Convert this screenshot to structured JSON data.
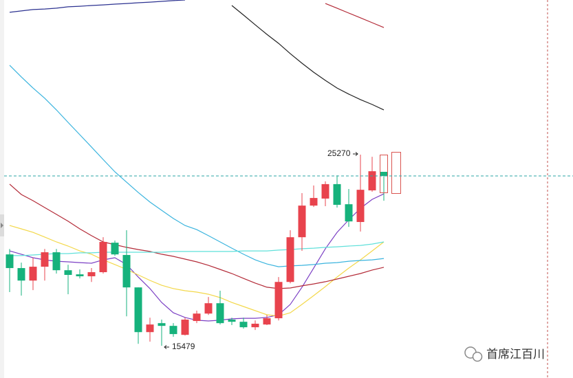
{
  "chart_data": {
    "type": "candlestick",
    "ylim": [
      13830,
      33190
    ],
    "up_color": "#e8434d",
    "down_color": "#16b27c",
    "open": [
      20160,
      19460,
      18820,
      19530,
      20270,
      19350,
      19140,
      19040,
      19250,
      20760,
      20130,
      18470,
      16180,
      16640,
      16500,
      16040,
      16750,
      17130,
      17660,
      16820,
      16710,
      16430,
      16570,
      16890,
      18750,
      21040,
      22660,
      23020,
      23760,
      22730,
      21820,
      23440,
      24390
    ],
    "high": [
      20440,
      19740,
      19990,
      20440,
      20440,
      19630,
      19390,
      19460,
      21040,
      20870,
      21400,
      18470,
      16920,
      16820,
      16640,
      16920,
      17280,
      17980,
      18300,
      16920,
      16920,
      16780,
      17060,
      19000,
      21400,
      23300,
      23690,
      23900,
      24210,
      23510,
      25270,
      25160,
      24390
    ],
    "low": [
      18230,
      18050,
      18330,
      18820,
      19180,
      18120,
      18930,
      18750,
      19180,
      20090,
      16990,
      15580,
      15690,
      15479,
      15940,
      16010,
      16640,
      17060,
      16570,
      16540,
      16360,
      16290,
      16540,
      16780,
      18680,
      20340,
      22590,
      22630,
      22560,
      21570,
      21330,
      23370,
      22910
    ],
    "close": [
      19460,
      18820,
      19530,
      20270,
      19350,
      19110,
      19040,
      19250,
      20800,
      20160,
      18470,
      16180,
      16570,
      16500,
      16080,
      16820,
      17130,
      17660,
      16640,
      16710,
      16430,
      16610,
      16890,
      18750,
      21040,
      22660,
      23050,
      23760,
      22700,
      21850,
      23470,
      24420,
      24180
    ],
    "series": [
      {
        "color": "#7b3fc4",
        "values": [
          20340,
          20170,
          19990,
          19880,
          19810,
          19780,
          19740,
          19710,
          19880,
          19990,
          19640,
          19000,
          18410,
          17700,
          17170,
          16930,
          16790,
          16750,
          16790,
          16860,
          16890,
          16890,
          16930,
          17070,
          17600,
          18480,
          19460,
          20450,
          21290,
          21930,
          22520,
          22980,
          23260
        ]
      },
      {
        "color": "#f3d84a",
        "values": [
          21640,
          21470,
          21290,
          21050,
          20800,
          20590,
          20340,
          20170,
          19880,
          19640,
          19390,
          19110,
          18830,
          18580,
          18410,
          18300,
          18230,
          18120,
          17950,
          17700,
          17490,
          17280,
          17070,
          17000,
          17170,
          17600,
          18050,
          18510,
          19000,
          19460,
          19880,
          20340,
          20800
        ]
      },
      {
        "color": "#b32a37",
        "values": [
          23760,
          23230,
          22910,
          22560,
          22210,
          21860,
          21470,
          21120,
          20800,
          20660,
          20520,
          20410,
          20310,
          20170,
          20060,
          19920,
          19780,
          19600,
          19390,
          19180,
          18930,
          18690,
          18480,
          18410,
          18440,
          18550,
          18650,
          18760,
          18900,
          19040,
          19180,
          19360,
          19500
        ]
      },
      {
        "color": "#3ab4de",
        "values": [
          29850,
          29250,
          28680,
          28160,
          27560,
          26920,
          26290,
          25660,
          25020,
          24390,
          23860,
          23330,
          22840,
          22420,
          22000,
          21640,
          21430,
          21120,
          20800,
          20480,
          20170,
          19880,
          19670,
          19530,
          19570,
          19600,
          19640,
          19710,
          19740,
          19810,
          19850,
          19880,
          19950
        ]
      },
      {
        "color": "#5fe0da",
        "values": [
          20100,
          20100,
          20130,
          20170,
          20200,
          20200,
          20240,
          20240,
          20270,
          20270,
          20270,
          20270,
          20270,
          20270,
          20310,
          20310,
          20310,
          20310,
          20310,
          20310,
          20340,
          20340,
          20340,
          20380,
          20410,
          20450,
          20480,
          20520,
          20550,
          20590,
          20620,
          20690,
          20800
        ]
      },
      {
        "color": "#2b3190",
        "values": [
          32560,
          32630,
          32700,
          32730,
          32770,
          32840,
          32870,
          32910,
          32940,
          32980,
          33010,
          33050,
          33080,
          33120,
          33160,
          33190,
          null,
          null,
          null,
          null,
          null,
          null,
          null,
          null,
          null,
          null,
          null,
          null,
          null,
          null,
          null,
          null,
          null
        ]
      },
      {
        "color": "#222222",
        "values": [
          null,
          null,
          null,
          null,
          null,
          null,
          null,
          null,
          null,
          null,
          null,
          null,
          null,
          null,
          null,
          null,
          null,
          null,
          null,
          32910,
          32420,
          31920,
          31430,
          30970,
          30440,
          29950,
          29490,
          29070,
          28680,
          28370,
          28090,
          27840,
          27560
        ]
      },
      {
        "color": "#b32a37",
        "values": [
          null,
          null,
          null,
          null,
          null,
          null,
          null,
          null,
          null,
          null,
          null,
          null,
          null,
          null,
          null,
          null,
          null,
          null,
          null,
          null,
          null,
          null,
          null,
          null,
          null,
          null,
          null,
          33010,
          32770,
          32520,
          32280,
          32030,
          31780
        ]
      }
    ],
    "high_label": 25270,
    "low_label": 15479
  },
  "watermark": "首席江百川"
}
